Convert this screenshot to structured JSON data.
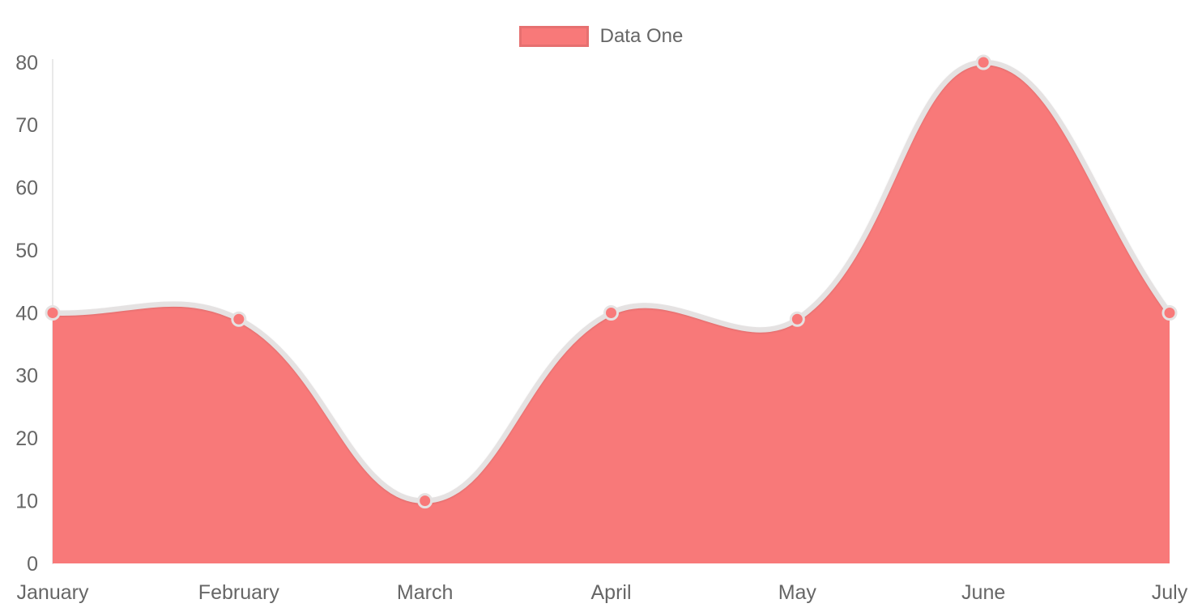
{
  "legend": {
    "position": "top",
    "items": [
      {
        "label": "Data One",
        "swatch_color": "#f87979"
      }
    ]
  },
  "chart_data": {
    "type": "area",
    "title": "",
    "xlabel": "",
    "ylabel": "",
    "categories": [
      "January",
      "February",
      "March",
      "April",
      "May",
      "June",
      "July"
    ],
    "series": [
      {
        "name": "Data One",
        "values": [
          40,
          39,
          10,
          40,
          39,
          80,
          40
        ]
      }
    ],
    "ylim": [
      0,
      80
    ],
    "ytick_step": 10,
    "yticks": [
      0,
      10,
      20,
      30,
      40,
      50,
      60,
      70,
      80
    ],
    "grid": false,
    "legend_position": "top",
    "line_tension": 0.4,
    "colors": {
      "fill": "#f87979",
      "point_fill": "#f87979",
      "line_border": "#e5e2e2",
      "point_border": "#e5e2e2",
      "axis_line": "#e9e9e9",
      "tick_text": "#666666"
    }
  }
}
